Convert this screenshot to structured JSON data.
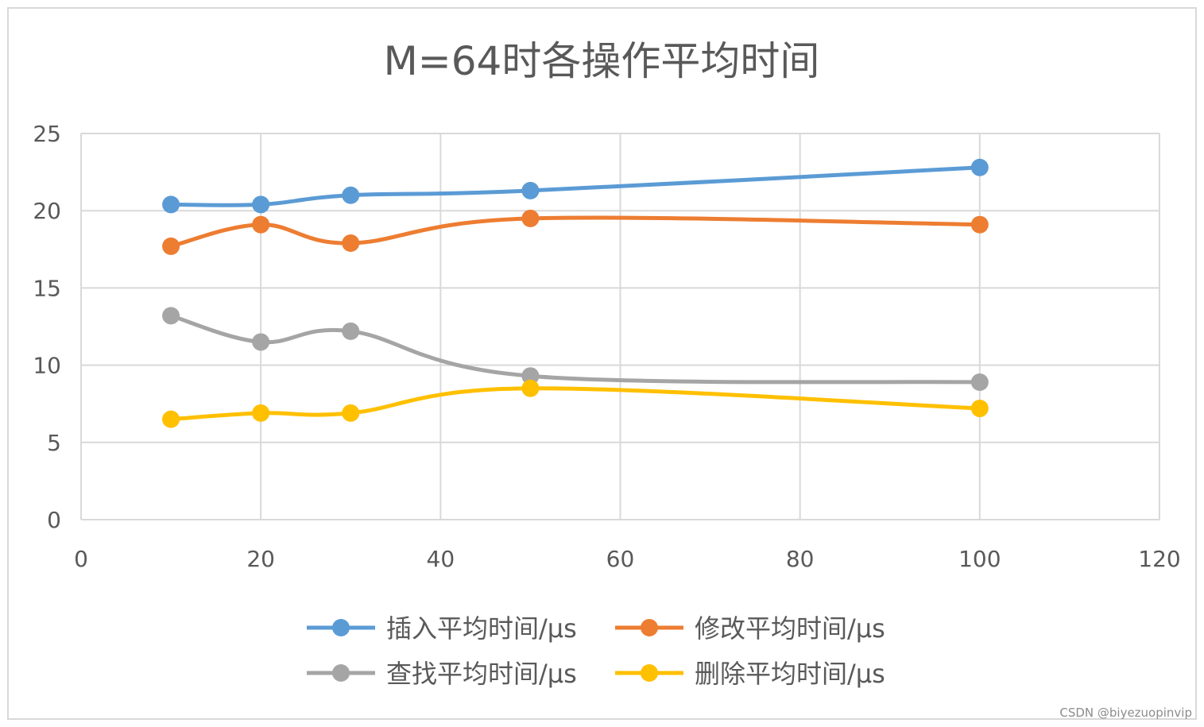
{
  "chart_data": {
    "type": "line",
    "smooth": true,
    "title": "M=64时各操作平均时间",
    "xlabel": "",
    "ylabel": "",
    "xlim": [
      0,
      120
    ],
    "ylim": [
      0,
      25
    ],
    "x_ticks": [
      0,
      20,
      40,
      60,
      80,
      100,
      120
    ],
    "y_ticks": [
      0,
      5,
      10,
      15,
      20,
      25
    ],
    "grid": true,
    "legend_position": "bottom",
    "x": [
      10,
      20,
      30,
      50,
      100
    ],
    "series": [
      {
        "name": "插入平均时间/μs",
        "color": "#5b9bd5",
        "values": [
          20.4,
          20.4,
          21.0,
          21.3,
          22.8
        ]
      },
      {
        "name": "修改平均时间/μs",
        "color": "#ed7d31",
        "values": [
          17.7,
          19.1,
          17.9,
          19.5,
          19.1
        ]
      },
      {
        "name": "查找平均时间/μs",
        "color": "#a5a5a5",
        "values": [
          13.2,
          11.5,
          12.2,
          9.3,
          8.9
        ]
      },
      {
        "name": "删除平均时间/μs",
        "color": "#ffc000",
        "values": [
          6.5,
          6.9,
          6.9,
          8.5,
          7.2
        ]
      }
    ]
  },
  "watermark": "CSDN @biyezuopinvip",
  "colors": {
    "grid": "#d9d9d9",
    "text": "#595959",
    "frame": "#d9d9d9"
  }
}
